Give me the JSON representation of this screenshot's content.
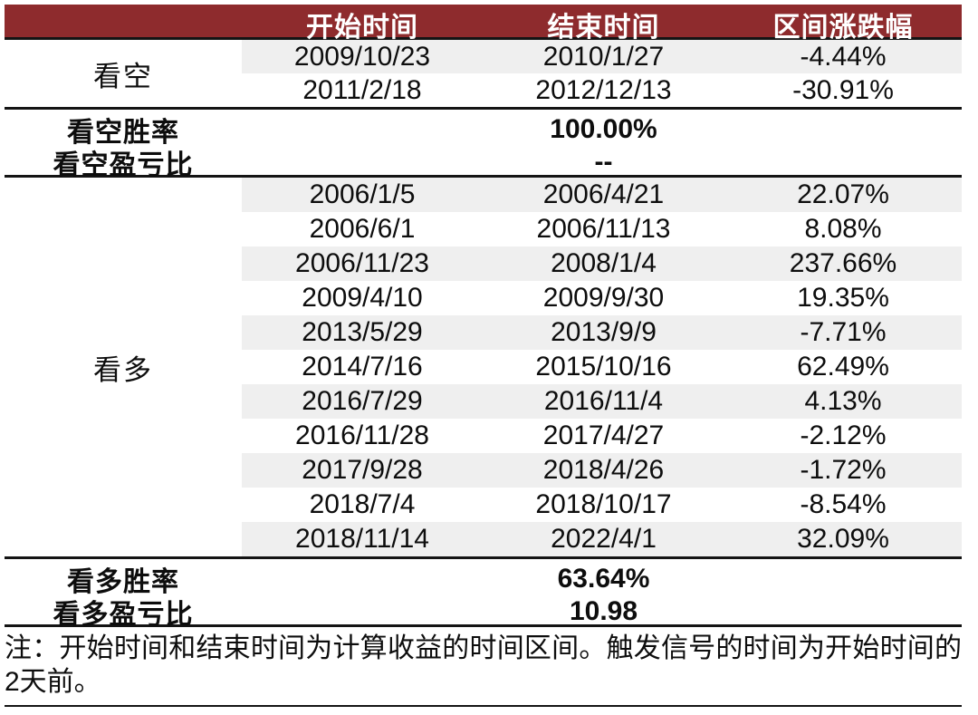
{
  "header": {
    "start": "开始时间",
    "end": "结束时间",
    "change": "区间涨跌幅"
  },
  "bear": {
    "label": "看空",
    "rows": [
      {
        "start": "2009/10/23",
        "end": "2010/1/27",
        "change": "-4.44%"
      },
      {
        "start": "2011/2/18",
        "end": "2012/12/13",
        "change": "-30.91%"
      }
    ],
    "summary": [
      {
        "label": "看空胜率",
        "value": "100.00%"
      },
      {
        "label": "看空盈亏比",
        "value": "--"
      }
    ]
  },
  "bull": {
    "label": "看多",
    "rows": [
      {
        "start": "2006/1/5",
        "end": "2006/4/21",
        "change": "22.07%"
      },
      {
        "start": "2006/6/1",
        "end": "2006/11/13",
        "change": "8.08%"
      },
      {
        "start": "2006/11/23",
        "end": "2008/1/4",
        "change": "237.66%"
      },
      {
        "start": "2009/4/10",
        "end": "2009/9/30",
        "change": "19.35%"
      },
      {
        "start": "2013/5/29",
        "end": "2013/9/9",
        "change": "-7.71%"
      },
      {
        "start": "2014/7/16",
        "end": "2015/10/16",
        "change": "62.49%"
      },
      {
        "start": "2016/7/29",
        "end": "2016/11/4",
        "change": "4.13%"
      },
      {
        "start": "2016/11/28",
        "end": "2017/4/27",
        "change": "-2.12%"
      },
      {
        "start": "2017/9/28",
        "end": "2018/4/26",
        "change": "-1.72%"
      },
      {
        "start": "2018/7/4",
        "end": "2018/10/17",
        "change": "-8.54%"
      },
      {
        "start": "2018/11/14",
        "end": "2022/4/1",
        "change": "32.09%"
      }
    ],
    "summary": [
      {
        "label": "看多胜率",
        "value": "63.64%"
      },
      {
        "label": "看多盈亏比",
        "value": "10.98"
      }
    ]
  },
  "note": "注：开始时间和结束时间为计算收益的时间区间。触发信号的时间为开始时间的2天前。",
  "colors": {
    "header_bg": "#8E2B2D",
    "alt_row_bg": "#EFEFEF",
    "rule": "#141414"
  }
}
